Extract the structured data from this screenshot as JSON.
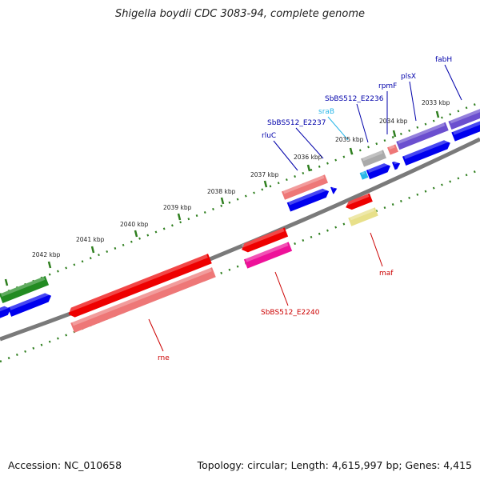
{
  "title": "Shigella boydii CDC 3083-94, complete genome",
  "footer": {
    "accession": "Accession: NC_010658",
    "topology": "Topology: circular; Length: 4,615,997 bp; Genes: 4,415"
  },
  "colors": {
    "backbone": "#7a7a7a",
    "tick": "#2f7f1f",
    "red": "#ee0000",
    "pink": "#ee7777",
    "magenta": "#ee1199",
    "blue": "#0000ee",
    "purple": "#6b4fcf",
    "green": "#228b22",
    "gray": "#aaaaaa",
    "cyan": "#29b6e8",
    "khaki": "#e8e08a"
  },
  "ticks": [
    "2033 kbp",
    "2034 kbp",
    "2035 kbp",
    "2036 kbp",
    "2037 kbp",
    "2038 kbp",
    "2039 kbp",
    "2040 kbp",
    "2041 kbp",
    "2042 kbp"
  ],
  "gene_labels": [
    {
      "text": "fabH",
      "color": "#0000aa"
    },
    {
      "text": "plsX",
      "color": "#0000aa"
    },
    {
      "text": "rpmF",
      "color": "#0000aa"
    },
    {
      "text": "SbBS512_E2236",
      "color": "#0000aa"
    },
    {
      "text": "sraB",
      "color": "#29b6e8"
    },
    {
      "text": "SbBS512_E2237",
      "color": "#0000aa"
    },
    {
      "text": "rluC",
      "color": "#0000aa"
    },
    {
      "text": "maf",
      "color": "#cc0000"
    },
    {
      "text": "SbBS512_E2240",
      "color": "#cc0000"
    },
    {
      "text": "rne",
      "color": "#cc0000"
    }
  ]
}
